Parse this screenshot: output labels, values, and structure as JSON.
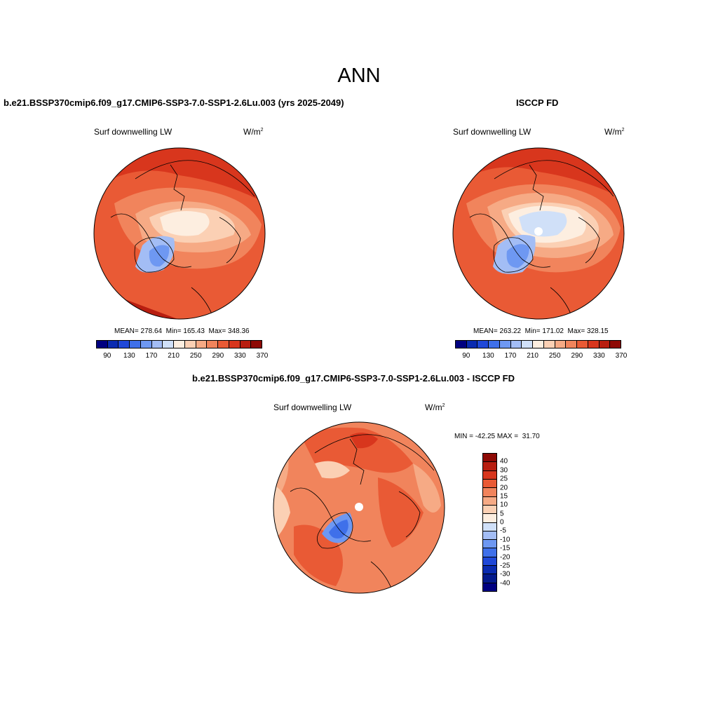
{
  "main_title": "ANN",
  "panels": [
    {
      "title": "b.e21.BSSP370cmip6.f09_g17.CMIP6-SSP3-7.0-SSP1-2.6Lu.003 (yrs 2025-2049)",
      "variable": "Surf downwelling LW",
      "units": "W/m",
      "units_exp": "2",
      "stats": "MEAN= 278.64  Min= 165.43  Max= 348.36"
    },
    {
      "title": "ISCCP FD",
      "variable": "Surf downwelling LW",
      "units": "W/m",
      "units_exp": "2",
      "stats": "MEAN= 263.22  Min= 171.02  Max= 328.15"
    },
    {
      "title": "b.e21.BSSP370cmip6.f09_g17.CMIP6-SSP3-7.0-SSP1-2.6Lu.003 - ISCCP FD",
      "variable": "Surf downwelling LW",
      "units": "W/m",
      "units_exp": "2",
      "stats": "MIN = -42.25 MAX =  31.70"
    }
  ],
  "abs_colorbar": {
    "colors": [
      "#000080",
      "#0a2bb0",
      "#1f48d8",
      "#3f70ea",
      "#6e98f2",
      "#a3bdf5",
      "#d0e0f8",
      "#fdeee0",
      "#fbd0b4",
      "#f6aa85",
      "#f1845c",
      "#e95a35",
      "#d8361d",
      "#b81e10",
      "#8e0a05"
    ],
    "labels": [
      "90",
      "130",
      "170",
      "210",
      "250",
      "290",
      "330",
      "370"
    ]
  },
  "diff_colorbar": {
    "colors": [
      "#8e0a05",
      "#b81e10",
      "#d8361d",
      "#e95a35",
      "#f1845c",
      "#f6aa85",
      "#fbd0b4",
      "#fdeee0",
      "#d0e0f8",
      "#a3bdf5",
      "#6e98f2",
      "#3f70ea",
      "#1f48d8",
      "#0a2bb0",
      "#041a8c",
      "#000080"
    ],
    "labels": [
      "40",
      "30",
      "25",
      "20",
      "15",
      "10",
      "5",
      "0",
      "-5",
      "-10",
      "-15",
      "-20",
      "-25",
      "-30",
      "-40"
    ]
  }
}
